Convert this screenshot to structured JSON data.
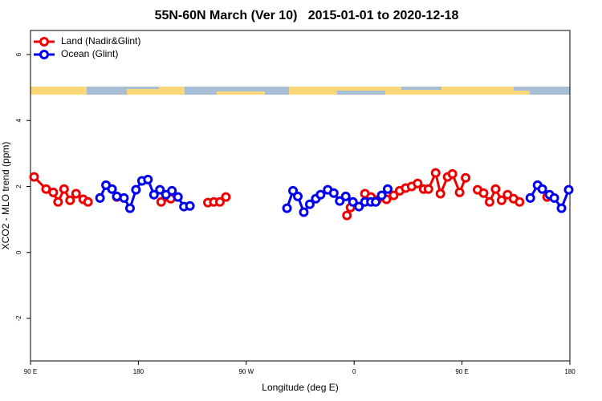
{
  "chart_data": {
    "type": "line",
    "title": "55N-60N March (Ver 10)   2015-01-01 to 2020-12-18",
    "x_label": "Longitude (deg E)",
    "y_label": "XCO2 - MLO trend (ppm)",
    "xlim": [
      90,
      540
    ],
    "xticks": [
      {
        "value": 90,
        "label": "90 E"
      },
      180,
      {
        "value": 270,
        "label": "90 W"
      },
      {
        "value": 360,
        "label": "0"
      },
      {
        "value": 450,
        "label": "90 E"
      },
      {
        "value": 540,
        "label": "180"
      }
    ],
    "ylim": [
      -3.29,
      6.73
    ],
    "yticks": [
      -2,
      0,
      2,
      4,
      6
    ],
    "legend": "top-left",
    "series": [
      {
        "name": "Land (Nadir&Glint)",
        "color": "#ee0000",
        "x": [
          93,
          103,
          109,
          113,
          118,
          123,
          128,
          134,
          138,
          null,
          162,
          null,
          199,
          207,
          null,
          238,
          243,
          248,
          253,
          null,
          354,
          357,
          null,
          369,
          374,
          379,
          387,
          393,
          398,
          403,
          408,
          413,
          418,
          422,
          428,
          432,
          438,
          442,
          448,
          453,
          null,
          463,
          468,
          473,
          478,
          483,
          488,
          493,
          498,
          null,
          521
        ],
        "values": [
          2.29,
          1.92,
          1.82,
          1.53,
          1.92,
          1.58,
          1.78,
          1.61,
          1.53,
          null,
          1.68,
          null,
          1.53,
          1.63,
          null,
          1.51,
          1.53,
          1.53,
          1.68,
          null,
          1.12,
          1.36,
          null,
          1.78,
          1.68,
          1.58,
          1.61,
          1.73,
          1.87,
          1.95,
          2.0,
          2.09,
          1.92,
          1.92,
          2.41,
          1.78,
          2.29,
          2.38,
          1.82,
          2.26,
          null,
          1.9,
          1.8,
          1.53,
          1.92,
          1.58,
          1.75,
          1.63,
          1.53,
          null,
          1.68
        ]
      },
      {
        "name": "Ocean (Glint)",
        "color": "#0000ee",
        "x": [
          148,
          153,
          158,
          162,
          168,
          173,
          178,
          183,
          188,
          193,
          198,
          203,
          208,
          213,
          218,
          223,
          null,
          304,
          309,
          313,
          318,
          323,
          328,
          332,
          338,
          343,
          348,
          353,
          359,
          364,
          369,
          374,
          378,
          383,
          388,
          null,
          507,
          513,
          517,
          523,
          527,
          533,
          539
        ],
        "values": [
          1.65,
          2.04,
          1.92,
          1.7,
          1.65,
          1.34,
          1.9,
          2.17,
          2.21,
          1.75,
          1.9,
          1.75,
          1.87,
          1.68,
          1.39,
          1.41,
          null,
          1.34,
          1.87,
          1.7,
          1.22,
          1.46,
          1.63,
          1.75,
          1.9,
          1.8,
          1.56,
          1.7,
          1.53,
          1.39,
          1.53,
          1.53,
          1.53,
          1.73,
          1.92,
          null,
          1.65,
          2.04,
          1.92,
          1.75,
          1.65,
          1.34,
          1.9
        ]
      }
    ]
  }
}
